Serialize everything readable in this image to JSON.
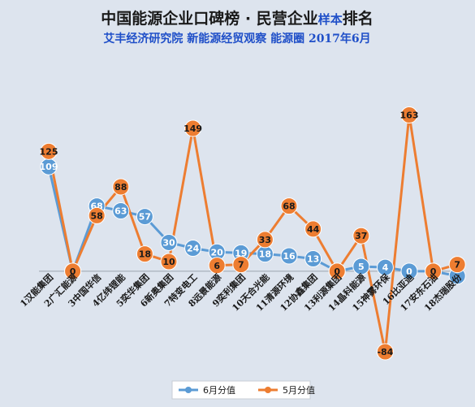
{
  "chart_data": {
    "type": "line",
    "title": "中国能源企业口碑榜 · 民营企业",
    "title_suffix": "样本",
    "title_end": "排名",
    "subtitle": "艾丰经济研究院 新能源经贸观察 能源圈 2017年6月",
    "categories": [
      "1汉能集团",
      "2广汇能源",
      "3中国华信",
      "4亿纬锂能",
      "5奕华集团",
      "6新奥集团",
      "7特变电工",
      "8远景能源",
      "9奕利集团",
      "10天合光能",
      "11清源环境",
      "12协鑫集团",
      "13利源集团",
      "14晶科能源",
      "15神雾环保",
      "16比亚迪",
      "17安东石油",
      "18杰瑞股份"
    ],
    "series": [
      {
        "name": "6月分值",
        "color": "#5b9bd5",
        "values": [
          109,
          0,
          68,
          63,
          57,
          30,
          24,
          20,
          19,
          18,
          16,
          13,
          0,
          5,
          4,
          0,
          0,
          -5
        ]
      },
      {
        "name": "5月分值",
        "color": "#ed7d31",
        "values": [
          125,
          0,
          58,
          88,
          18,
          10,
          149,
          6,
          7,
          33,
          68,
          44,
          0,
          37,
          -84,
          163,
          0,
          7
        ]
      }
    ],
    "data_labels": {
      "s0": [
        "109",
        "0",
        "68",
        "63",
        "57",
        "30",
        "24",
        "20",
        "19",
        "18",
        "16",
        "13",
        "0",
        "5",
        "4",
        "0",
        "0",
        ""
      ],
      "s1": [
        "125",
        "0",
        "58",
        "88",
        "18",
        "10",
        "149",
        "6",
        "7",
        "33",
        "68",
        "44",
        "0",
        "37",
        "-84",
        "163",
        "0",
        "7"
      ]
    },
    "ylim": [
      -90,
      175
    ],
    "grid": false,
    "legend_position": "bottom",
    "colors": {
      "background": "#dde4ee",
      "title": "#1a1a1a",
      "title_suffix": "#1f4fc8",
      "subtitle": "#1f4fc8"
    }
  }
}
